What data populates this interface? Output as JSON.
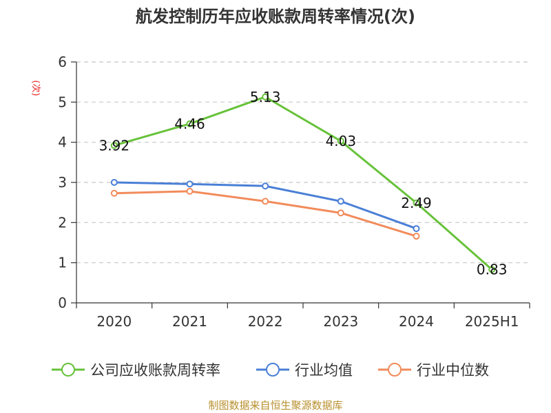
{
  "chart_data": {
    "type": "line",
    "title": "航发控制历年应收账款周转率情况(次)",
    "ylabel": "(次)",
    "categories": [
      "2020",
      "2021",
      "2022",
      "2023",
      "2024",
      "2025H1"
    ],
    "ylim": [
      0,
      6
    ],
    "yticks": [
      0,
      1,
      2,
      3,
      4,
      5,
      6
    ],
    "grid": true,
    "legend_position": "bottom",
    "series": [
      {
        "name": "公司应收账款周转率",
        "color": "#67c23a",
        "values": [
          3.92,
          4.46,
          5.13,
          4.03,
          2.49,
          0.83
        ],
        "show_labels": true
      },
      {
        "name": "行业均值",
        "color": "#4a7fd6",
        "values": [
          3.0,
          2.96,
          2.91,
          2.53,
          1.85,
          null
        ],
        "show_labels": false
      },
      {
        "name": "行业中位数",
        "color": "#f28b5b",
        "values": [
          2.73,
          2.78,
          2.53,
          2.24,
          1.66,
          null
        ],
        "show_labels": false
      }
    ]
  },
  "source": "制图数据来自恒生聚源数据库"
}
